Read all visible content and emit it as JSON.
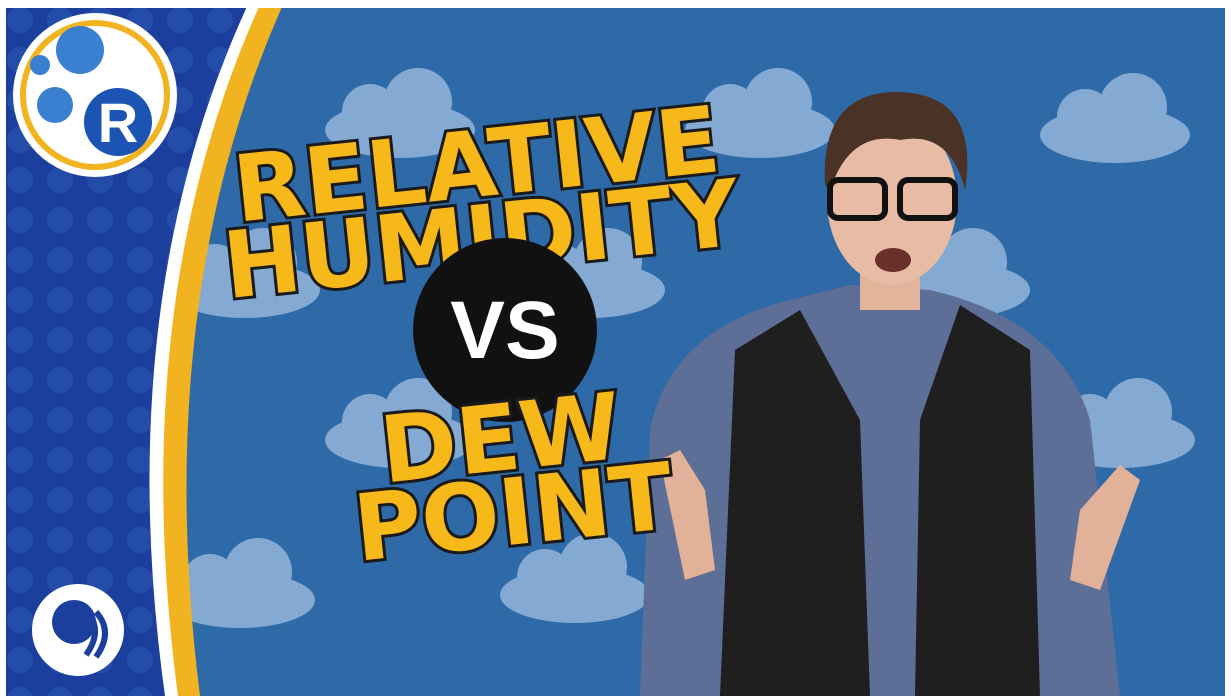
{
  "title": {
    "line1": "RELATIVE",
    "line2": "HUMIDITY",
    "connector": "VS",
    "line3": "DEW",
    "line4": "POINT"
  },
  "logo": {
    "letter": "R"
  }
}
